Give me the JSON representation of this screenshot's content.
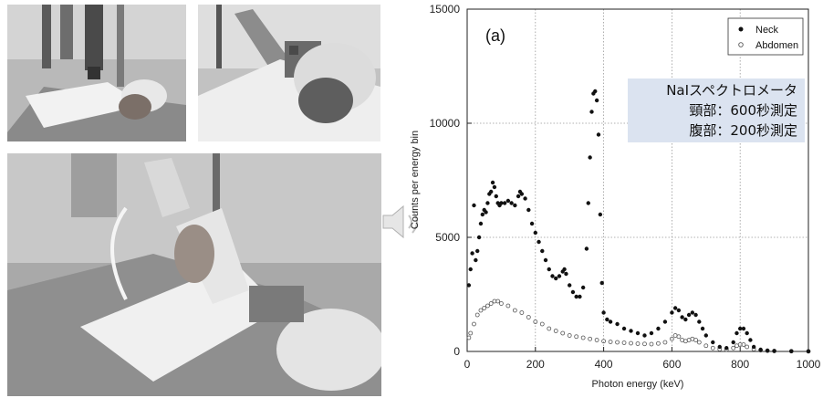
{
  "photos": [
    {
      "subject": "patient-lying-neck-measurement"
    },
    {
      "subject": "patient-closeup-detector-neck"
    },
    {
      "subject": "patient-holding-detector-abdomen"
    }
  ],
  "annotation": {
    "lines": [
      "NaIスペクトロメータ",
      "頸部：600秒測定",
      "腹部：200秒測定"
    ],
    "background": "#dbe3f0"
  },
  "chart_data": {
    "type": "scatter",
    "panel_label": "(a)",
    "xlabel": "Photon energy (keV)",
    "ylabel": "Counts per energy bin",
    "xlim": [
      0,
      1000
    ],
    "ylim": [
      0,
      15000
    ],
    "xticks": [
      0,
      200,
      400,
      600,
      800,
      1000
    ],
    "yticks": [
      0,
      5000,
      10000,
      15000
    ],
    "grid": true,
    "legend_position": "top-right",
    "series": [
      {
        "name": "Neck",
        "marker": "filled-circle",
        "color": "#111111",
        "points": [
          [
            5,
            2900
          ],
          [
            10,
            3600
          ],
          [
            15,
            4300
          ],
          [
            20,
            6400
          ],
          [
            25,
            4000
          ],
          [
            30,
            4400
          ],
          [
            35,
            5000
          ],
          [
            40,
            5600
          ],
          [
            45,
            6000
          ],
          [
            50,
            6200
          ],
          [
            55,
            6100
          ],
          [
            60,
            6500
          ],
          [
            65,
            6900
          ],
          [
            70,
            7000
          ],
          [
            75,
            7400
          ],
          [
            80,
            7200
          ],
          [
            85,
            6800
          ],
          [
            90,
            6500
          ],
          [
            95,
            6400
          ],
          [
            100,
            6500
          ],
          [
            110,
            6500
          ],
          [
            120,
            6600
          ],
          [
            130,
            6500
          ],
          [
            140,
            6400
          ],
          [
            150,
            6800
          ],
          [
            155,
            7000
          ],
          [
            160,
            6900
          ],
          [
            170,
            6700
          ],
          [
            180,
            6200
          ],
          [
            190,
            5600
          ],
          [
            200,
            5200
          ],
          [
            210,
            4800
          ],
          [
            220,
            4400
          ],
          [
            230,
            4000
          ],
          [
            240,
            3600
          ],
          [
            250,
            3300
          ],
          [
            260,
            3200
          ],
          [
            270,
            3300
          ],
          [
            280,
            3500
          ],
          [
            285,
            3600
          ],
          [
            290,
            3400
          ],
          [
            300,
            2900
          ],
          [
            310,
            2600
          ],
          [
            320,
            2400
          ],
          [
            330,
            2400
          ],
          [
            340,
            2800
          ],
          [
            350,
            4500
          ],
          [
            355,
            6500
          ],
          [
            360,
            8500
          ],
          [
            365,
            10500
          ],
          [
            370,
            11300
          ],
          [
            375,
            11400
          ],
          [
            380,
            11000
          ],
          [
            385,
            9500
          ],
          [
            390,
            6000
          ],
          [
            395,
            3000
          ],
          [
            400,
            1700
          ],
          [
            410,
            1400
          ],
          [
            420,
            1300
          ],
          [
            440,
            1200
          ],
          [
            460,
            1000
          ],
          [
            480,
            900
          ],
          [
            500,
            800
          ],
          [
            520,
            700
          ],
          [
            540,
            800
          ],
          [
            560,
            1000
          ],
          [
            580,
            1300
          ],
          [
            600,
            1700
          ],
          [
            610,
            1900
          ],
          [
            620,
            1800
          ],
          [
            630,
            1500
          ],
          [
            640,
            1400
          ],
          [
            650,
            1600
          ],
          [
            660,
            1700
          ],
          [
            670,
            1600
          ],
          [
            680,
            1300
          ],
          [
            690,
            1000
          ],
          [
            700,
            700
          ],
          [
            720,
            400
          ],
          [
            740,
            200
          ],
          [
            760,
            150
          ],
          [
            780,
            400
          ],
          [
            790,
            800
          ],
          [
            800,
            1000
          ],
          [
            810,
            1000
          ],
          [
            820,
            800
          ],
          [
            830,
            500
          ],
          [
            840,
            200
          ],
          [
            860,
            80
          ],
          [
            880,
            40
          ],
          [
            900,
            20
          ],
          [
            950,
            10
          ],
          [
            1000,
            5
          ]
        ]
      },
      {
        "name": "Abdomen",
        "marker": "open-circle",
        "color": "#555555",
        "points": [
          [
            5,
            600
          ],
          [
            10,
            800
          ],
          [
            20,
            1200
          ],
          [
            30,
            1600
          ],
          [
            40,
            1800
          ],
          [
            50,
            1900
          ],
          [
            60,
            2000
          ],
          [
            70,
            2100
          ],
          [
            80,
            2200
          ],
          [
            90,
            2200
          ],
          [
            100,
            2100
          ],
          [
            120,
            2000
          ],
          [
            140,
            1800
          ],
          [
            160,
            1700
          ],
          [
            180,
            1500
          ],
          [
            200,
            1300
          ],
          [
            220,
            1200
          ],
          [
            240,
            1000
          ],
          [
            260,
            900
          ],
          [
            280,
            800
          ],
          [
            300,
            700
          ],
          [
            320,
            650
          ],
          [
            340,
            600
          ],
          [
            360,
            550
          ],
          [
            380,
            500
          ],
          [
            400,
            450
          ],
          [
            420,
            420
          ],
          [
            440,
            400
          ],
          [
            460,
            380
          ],
          [
            480,
            360
          ],
          [
            500,
            340
          ],
          [
            520,
            330
          ],
          [
            540,
            320
          ],
          [
            560,
            350
          ],
          [
            580,
            400
          ],
          [
            600,
            550
          ],
          [
            610,
            700
          ],
          [
            620,
            650
          ],
          [
            630,
            500
          ],
          [
            640,
            450
          ],
          [
            650,
            500
          ],
          [
            660,
            550
          ],
          [
            670,
            500
          ],
          [
            680,
            400
          ],
          [
            700,
            250
          ],
          [
            720,
            150
          ],
          [
            740,
            100
          ],
          [
            760,
            80
          ],
          [
            780,
            150
          ],
          [
            790,
            250
          ],
          [
            800,
            300
          ],
          [
            810,
            300
          ],
          [
            820,
            200
          ],
          [
            840,
            100
          ],
          [
            860,
            50
          ],
          [
            880,
            30
          ],
          [
            900,
            20
          ],
          [
            950,
            10
          ],
          [
            1000,
            5
          ]
        ]
      }
    ]
  }
}
